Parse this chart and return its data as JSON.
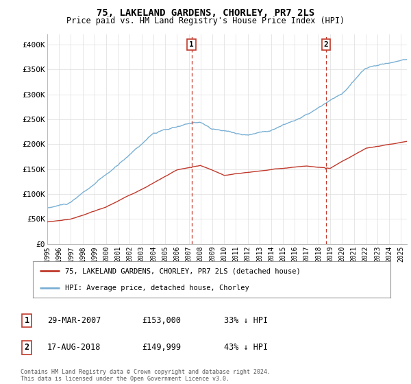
{
  "title": "75, LAKELAND GARDENS, CHORLEY, PR7 2LS",
  "subtitle": "Price paid vs. HM Land Registry's House Price Index (HPI)",
  "ylim": [
    0,
    420000
  ],
  "yticks": [
    0,
    50000,
    100000,
    150000,
    200000,
    250000,
    300000,
    350000,
    400000
  ],
  "ytick_labels": [
    "£0",
    "£50K",
    "£100K",
    "£150K",
    "£200K",
    "£250K",
    "£300K",
    "£350K",
    "£400K"
  ],
  "hpi_color": "#7ab0d4",
  "price_color": "#c0392b",
  "marker1_x": 2007.23,
  "marker2_x": 2018.63,
  "legend_label_red": "75, LAKELAND GARDENS, CHORLEY, PR7 2LS (detached house)",
  "legend_label_blue": "HPI: Average price, detached house, Chorley",
  "table_rows": [
    {
      "num": "1",
      "date": "29-MAR-2007",
      "price": "£153,000",
      "change": "33% ↓ HPI"
    },
    {
      "num": "2",
      "date": "17-AUG-2018",
      "price": "£149,999",
      "change": "43% ↓ HPI"
    }
  ],
  "footer": "Contains HM Land Registry data © Crown copyright and database right 2024.\nThis data is licensed under the Open Government Licence v3.0.",
  "background_color": "#ffffff",
  "grid_color": "#dddddd"
}
